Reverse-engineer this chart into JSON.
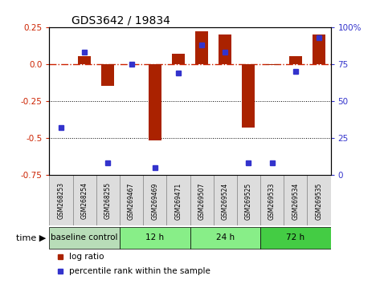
{
  "title": "GDS3642 / 19834",
  "samples": [
    "GSM268253",
    "GSM268254",
    "GSM268255",
    "GSM269467",
    "GSM269469",
    "GSM269471",
    "GSM269507",
    "GSM269524",
    "GSM269525",
    "GSM269533",
    "GSM269534",
    "GSM269535"
  ],
  "log_ratio": [
    0.0,
    0.05,
    -0.15,
    0.0,
    -0.52,
    0.07,
    0.22,
    0.2,
    -0.43,
    -0.01,
    0.05,
    0.2
  ],
  "percentile": [
    32,
    83,
    8,
    75,
    5,
    69,
    88,
    83,
    8,
    8,
    70,
    93
  ],
  "ylim_left": [
    -0.75,
    0.25
  ],
  "ylim_right": [
    0,
    100
  ],
  "yticks_left": [
    0.25,
    0.0,
    -0.25,
    -0.5,
    -0.75
  ],
  "yticks_right": [
    100,
    75,
    50,
    25,
    0
  ],
  "bar_color": "#AA2200",
  "dot_color": "#3333CC",
  "zeroline_color": "#CC2200",
  "groups": [
    {
      "label": "baseline control",
      "start": 0,
      "end": 3,
      "color": "#b8ddb8"
    },
    {
      "label": "12 h",
      "start": 3,
      "end": 6,
      "color": "#88ee88"
    },
    {
      "label": "24 h",
      "start": 6,
      "end": 9,
      "color": "#88ee88"
    },
    {
      "label": "72 h",
      "start": 9,
      "end": 12,
      "color": "#44cc44"
    }
  ],
  "legend_items": [
    "log ratio",
    "percentile rank within the sample"
  ],
  "bar_width": 0.55
}
